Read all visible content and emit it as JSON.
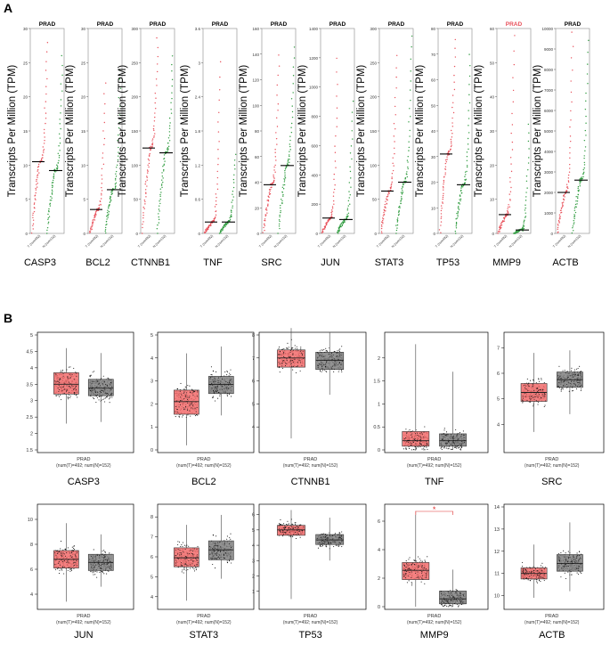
{
  "panel_a": {
    "letter": "A",
    "ylabel": "Transcripts Per Million (TPM)",
    "colors": {
      "tumor": "#e8505a",
      "normal": "#2e9b3e"
    },
    "charts": [
      {
        "gene": "CASP3",
        "title": "PRAD",
        "ymax": 30,
        "ticks": [
          0,
          5,
          10,
          15,
          20,
          25,
          30
        ],
        "tumor_median": 10.5,
        "normal_median": 9.2,
        "t_top": 28,
        "n_top": 26,
        "xticks": [
          "T (num492)",
          "N (num152)"
        ]
      },
      {
        "gene": "BCL2",
        "title": "PRAD",
        "ymax": 30,
        "ticks": [
          0,
          5,
          10,
          15,
          20,
          25,
          30
        ],
        "tumor_median": 3.5,
        "normal_median": 6.4,
        "t_top": 22,
        "n_top": 24,
        "xticks": [
          "T (num492)",
          "N (num152)"
        ]
      },
      {
        "gene": "CTNNB1",
        "title": "PRAD",
        "ymax": 300,
        "ticks": [
          0,
          50,
          100,
          150,
          200,
          250,
          300
        ],
        "tumor_median": 125,
        "normal_median": 118,
        "t_top": 285,
        "n_top": 260,
        "xticks": [
          "T (num492)",
          "N (num152)"
        ]
      },
      {
        "gene": "TNF",
        "title": "PRAD",
        "ymax": 3.6,
        "ticks": [
          0,
          0.6,
          1.2,
          1.8,
          2.4,
          3,
          3.6
        ],
        "tumor_median": 0.2,
        "normal_median": 0.2,
        "t_top": 3.0,
        "n_top": 1.4,
        "xticks": [
          "T (num492)",
          "N (num152)"
        ]
      },
      {
        "gene": "SRC",
        "title": "PRAD",
        "ymax": 160,
        "ticks": [
          0,
          20,
          40,
          60,
          80,
          100,
          120,
          140,
          160
        ],
        "tumor_median": 38,
        "normal_median": 53,
        "t_top": 140,
        "n_top": 145,
        "xticks": [
          "T (num492)",
          "N (num152)"
        ]
      },
      {
        "gene": "JUN",
        "title": "PRAD",
        "ymax": 1400,
        "ticks": [
          0,
          200,
          400,
          600,
          800,
          1000,
          1200,
          1400
        ],
        "tumor_median": 105,
        "normal_median": 95,
        "t_top": 1200,
        "n_top": 900,
        "xticks": [
          "T (num492)",
          "N (num152)"
        ]
      },
      {
        "gene": "STAT3",
        "title": "PRAD",
        "ymax": 300,
        "ticks": [
          0,
          50,
          100,
          150,
          200,
          250,
          300
        ],
        "tumor_median": 62,
        "normal_median": 75,
        "t_top": 260,
        "n_top": 290,
        "xticks": [
          "T (num492)",
          "N (num152)"
        ]
      },
      {
        "gene": "TP53",
        "title": "PRAD",
        "ymax": 80,
        "ticks": [
          0,
          10,
          20,
          30,
          40,
          50,
          60,
          70,
          80
        ],
        "tumor_median": 31,
        "normal_median": 19,
        "t_top": 76,
        "n_top": 70,
        "xticks": [
          "T (num492)",
          "N (num152)"
        ]
      },
      {
        "gene": "MMP9",
        "title": "PRAD",
        "title_color": "#e8505a",
        "ymax": 60,
        "ticks": [
          0,
          10,
          20,
          30,
          40,
          50,
          60
        ],
        "tumor_median": 5.5,
        "normal_median": 1,
        "t_top": 58,
        "n_top": 32,
        "xticks": [
          "T (num492)",
          "N (num152)"
        ]
      },
      {
        "gene": "ACTB",
        "title": "PRAD",
        "ymax": 10000,
        "ticks": [
          0,
          1000,
          2000,
          3000,
          4000,
          5000,
          6000,
          7000,
          8000,
          9000,
          10000
        ],
        "tumor_median": 2000,
        "normal_median": 2600,
        "t_top": 9800,
        "n_top": 9400,
        "xticks": [
          "T (num492)",
          "N (num152)"
        ]
      }
    ]
  },
  "panel_b": {
    "letter": "B",
    "colors": {
      "tumor": "#f26b6b",
      "normal": "#7f7f7f"
    },
    "xlabel": "PRAD",
    "sublabel": "(num(T)=492; num(N)=152)",
    "charts": [
      {
        "gene": "CASP3",
        "ylim": [
          1.5,
          5
        ],
        "ticks": [
          1.5,
          2,
          2.5,
          3,
          3.5,
          4,
          4.5,
          5
        ],
        "tumor": {
          "q1": 3.2,
          "median": 3.5,
          "q3": 3.85,
          "min": 2.3,
          "max": 4.6
        },
        "normal": {
          "q1": 3.15,
          "median": 3.38,
          "q3": 3.65,
          "min": 2.35,
          "max": 4.45
        }
      },
      {
        "gene": "BCL2",
        "ylim": [
          0,
          5
        ],
        "ticks": [
          0,
          1,
          2,
          3,
          4,
          5
        ],
        "tumor": {
          "q1": 1.55,
          "median": 2.1,
          "q3": 2.6,
          "min": 0.2,
          "max": 4.2
        },
        "normal": {
          "q1": 2.45,
          "median": 2.85,
          "q3": 3.2,
          "min": 1.5,
          "max": 4.5
        }
      },
      {
        "gene": "CTNNB1",
        "ylim": [
          3,
          8
        ],
        "ticks": [
          4,
          5,
          6,
          7,
          8
        ],
        "tumor": {
          "q1": 6.6,
          "median": 7.0,
          "q3": 7.35,
          "min": 3.5,
          "max": 8.3
        },
        "normal": {
          "q1": 6.5,
          "median": 6.9,
          "q3": 7.25,
          "min": 5.4,
          "max": 8.1
        }
      },
      {
        "gene": "TNF",
        "ylim": [
          0,
          2.5
        ],
        "ticks": [
          0,
          0.5,
          1,
          1.5,
          2
        ],
        "tumor": {
          "q1": 0.08,
          "median": 0.2,
          "q3": 0.4,
          "min": 0,
          "max": 2.3
        },
        "normal": {
          "q1": 0.08,
          "median": 0.2,
          "q3": 0.35,
          "min": 0,
          "max": 1.7
        }
      },
      {
        "gene": "SRC",
        "ylim": [
          3,
          7.5
        ],
        "ticks": [
          4,
          5,
          6,
          7
        ],
        "tumor": {
          "q1": 4.9,
          "median": 5.25,
          "q3": 5.6,
          "min": 3.7,
          "max": 6.8
        },
        "normal": {
          "q1": 5.45,
          "median": 5.75,
          "q3": 6.05,
          "min": 4.4,
          "max": 6.9
        }
      },
      {
        "gene": "JUN",
        "ylim": [
          3,
          11
        ],
        "ticks": [
          4,
          6,
          8,
          10
        ],
        "tumor": {
          "q1": 6.1,
          "median": 6.8,
          "q3": 7.5,
          "min": 3.4,
          "max": 9.7
        },
        "normal": {
          "q1": 5.9,
          "median": 6.55,
          "q3": 7.2,
          "min": 4.6,
          "max": 8.8
        }
      },
      {
        "gene": "STAT3",
        "ylim": [
          3.5,
          8.5
        ],
        "ticks": [
          4,
          5,
          6,
          7,
          8
        ],
        "tumor": {
          "q1": 5.5,
          "median": 5.95,
          "q3": 6.45,
          "min": 3.8,
          "max": 7.6
        },
        "normal": {
          "q1": 5.85,
          "median": 6.35,
          "q3": 6.8,
          "min": 4.9,
          "max": 8.1
        }
      },
      {
        "gene": "TP53",
        "ylim": [
          0,
          6.5
        ],
        "ticks": [
          1,
          2,
          3,
          4,
          5,
          6
        ],
        "tumor": {
          "q1": 4.65,
          "median": 5.0,
          "q3": 5.3,
          "min": 0.5,
          "max": 6.3
        },
        "normal": {
          "q1": 4.05,
          "median": 4.35,
          "q3": 4.7,
          "min": 3.0,
          "max": 5.8
        }
      },
      {
        "gene": "MMP9",
        "ylim": [
          0,
          7
        ],
        "ticks": [
          0,
          2,
          4,
          6
        ],
        "significance": "*",
        "tumor": {
          "q1": 1.9,
          "median": 2.55,
          "q3": 3.1,
          "min": 0,
          "max": 6.7
        },
        "normal": {
          "q1": 0.2,
          "median": 0.55,
          "q3": 1.1,
          "min": 0,
          "max": 2.6
        }
      },
      {
        "gene": "ACTB",
        "ylim": [
          9.5,
          14
        ],
        "ticks": [
          10,
          11,
          12,
          13,
          14
        ],
        "tumor": {
          "q1": 10.75,
          "median": 11.0,
          "q3": 11.25,
          "min": 9.9,
          "max": 12.3
        },
        "normal": {
          "q1": 11.1,
          "median": 11.45,
          "q3": 11.85,
          "min": 10.2,
          "max": 13.3
        }
      }
    ]
  }
}
